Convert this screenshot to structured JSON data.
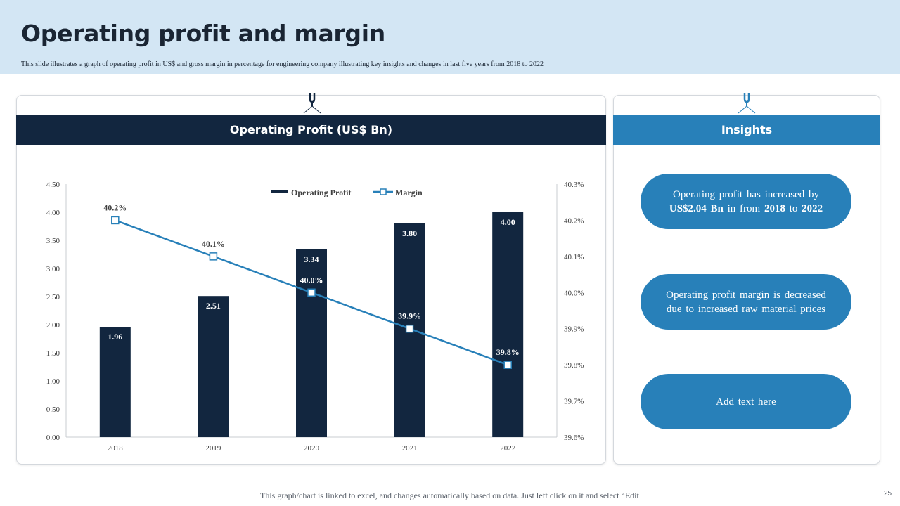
{
  "slide": {
    "title": "Operating profit and margin",
    "subtitle": "This slide illustrates a graph of operating profit in US$ and gross margin in percentage for engineering company illustrating key insights and changes in last five years from 2018 to 2022",
    "footnote": "This graph/chart is linked to excel,  and changes  automatically based on data. Just left click on it and select “Edit",
    "page_number": "25"
  },
  "chart_panel": {
    "heading": "Operating Profit (US$ Bn)"
  },
  "insights_panel": {
    "heading": "Insights",
    "items": [
      {
        "pre": "Operating profit has increased by",
        "b1": "US$2.04 Bn",
        "mid": " in from ",
        "b2": "2018",
        "mid2": " to ",
        "b3": "2022"
      },
      {
        "text": "Operating profit margin is decreased due to increased raw material prices"
      },
      {
        "text": "Add text here"
      }
    ]
  },
  "colors": {
    "bar": "#12263f",
    "line": "#2880b9",
    "header_band": "#d3e6f4",
    "pill": "#2880b9"
  },
  "chart_data": {
    "type": "bar",
    "categories": [
      "2018",
      "2019",
      "2020",
      "2021",
      "2022"
    ],
    "series": [
      {
        "name": "Operating Profit",
        "type": "bar",
        "axis": "left",
        "values": [
          1.96,
          2.51,
          3.34,
          3.8,
          4.0
        ],
        "labels": [
          "1.96",
          "2.51",
          "3.34",
          "3.80",
          "4.00"
        ]
      },
      {
        "name": "Margin",
        "type": "line",
        "axis": "right",
        "values": [
          40.2,
          40.1,
          40.0,
          39.9,
          39.8
        ],
        "labels": [
          "40.2%",
          "40.1%",
          "40.0%",
          "39.9%",
          "39.8%"
        ]
      }
    ],
    "y_left": {
      "min": 0,
      "max": 4.5,
      "ticks": [
        "0.00",
        "0.50",
        "1.00",
        "1.50",
        "2.00",
        "2.50",
        "3.00",
        "3.50",
        "4.00",
        "4.50"
      ]
    },
    "y_right": {
      "min": 39.6,
      "max": 40.3,
      "ticks": [
        "39.6%",
        "39.7%",
        "39.8%",
        "39.9%",
        "40.0%",
        "40.1%",
        "40.2%",
        "40.3%"
      ]
    },
    "legend": "top",
    "grid": false
  }
}
